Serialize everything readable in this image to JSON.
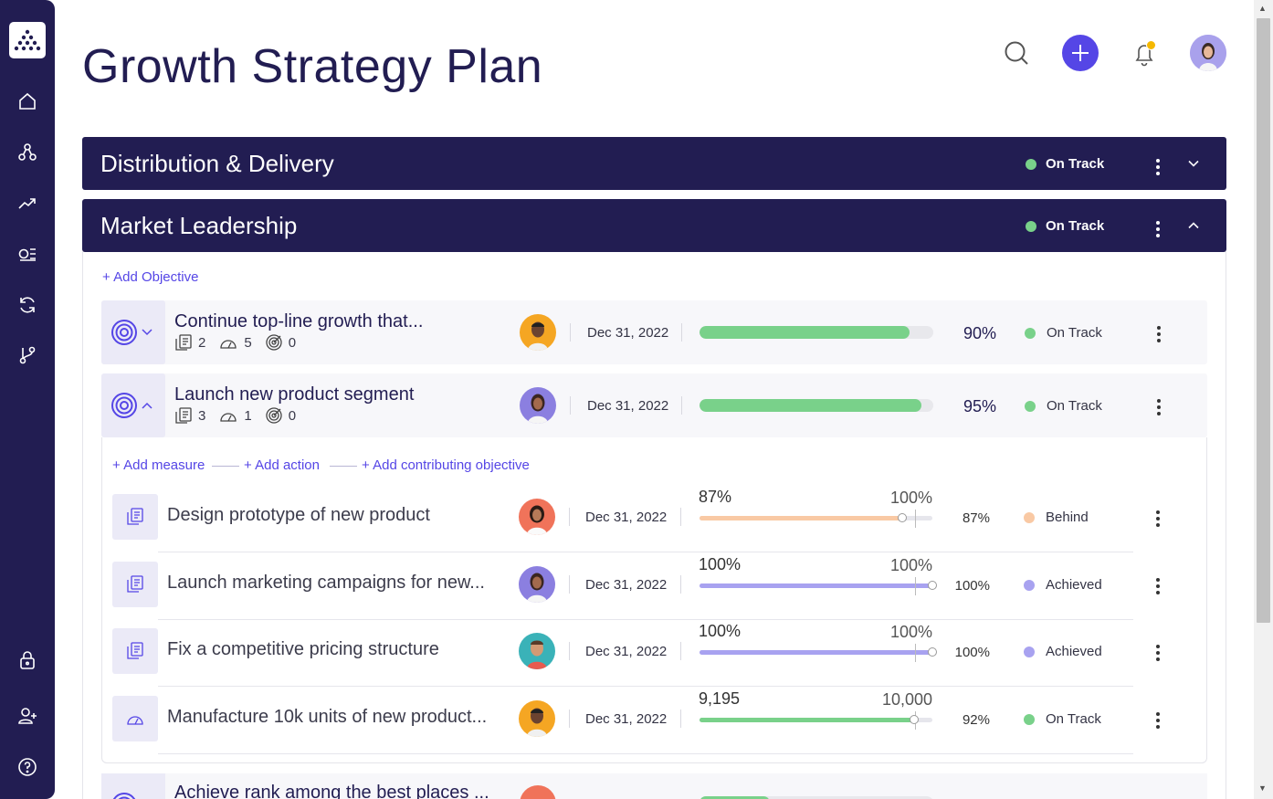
{
  "page_title": "Growth Strategy Plan",
  "header": {
    "search_icon": "search-icon",
    "add_icon": "plus-icon",
    "notification_icon": "bell-icon"
  },
  "sidebar": {
    "items": [
      "home-icon",
      "hierarchy-icon",
      "trending-icon",
      "list-icon",
      "sync-icon",
      "branch-icon"
    ],
    "bottom": [
      "lock-icon",
      "add-user-icon",
      "help-icon"
    ]
  },
  "colors": {
    "navy": "#221d52",
    "accent": "#5546e6",
    "on_track": "#79d18a",
    "behind": "#f9c9a4",
    "achieved": "#a8a2f0"
  },
  "sections": [
    {
      "title": "Distribution & Delivery",
      "status": "On Track",
      "expanded": false
    },
    {
      "title": "Market Leadership",
      "status": "On Track",
      "expanded": true
    }
  ],
  "add_objective": "+ Add Objective",
  "objectives": [
    {
      "title": "Continue top-line growth that...",
      "measures": "2",
      "actions": "5",
      "contributing": "0",
      "date": "Dec 31, 2022",
      "progress_pct": 90,
      "progress": "90%",
      "status": "On Track"
    },
    {
      "title": "Launch new product segment",
      "measures": "3",
      "actions": "1",
      "contributing": "0",
      "date": "Dec 31, 2022",
      "progress_pct": 95,
      "progress": "95%",
      "status": "On Track"
    },
    {
      "title": "Achieve rank among the best places ..."
    }
  ],
  "add_links": {
    "measure": "+ Add measure",
    "action": "+ Add action",
    "contributing": "+ Add contributing objective"
  },
  "key_results": [
    {
      "title": "Design prototype of new product",
      "date": "Dec 31, 2022",
      "current": "87%",
      "target": "100%",
      "fill": 0.87,
      "pct": "87%",
      "status": "Behind",
      "status_key": "behind"
    },
    {
      "title": "Launch marketing campaigns for new...",
      "date": "Dec 31, 2022",
      "current": "100%",
      "target": "100%",
      "fill": 1.0,
      "pct": "100%",
      "status": "Achieved",
      "status_key": "achieved"
    },
    {
      "title": "Fix a competitive pricing structure",
      "date": "Dec 31, 2022",
      "current": "100%",
      "target": "100%",
      "fill": 1.0,
      "pct": "100%",
      "status": "Achieved",
      "status_key": "achieved"
    },
    {
      "title": "Manufacture 10k units of new product...",
      "date": "Dec 31, 2022",
      "current": "9,195",
      "target": "10,000",
      "fill": 0.92,
      "pct": "92%",
      "status": "On Track",
      "status_key": "on_track"
    }
  ]
}
